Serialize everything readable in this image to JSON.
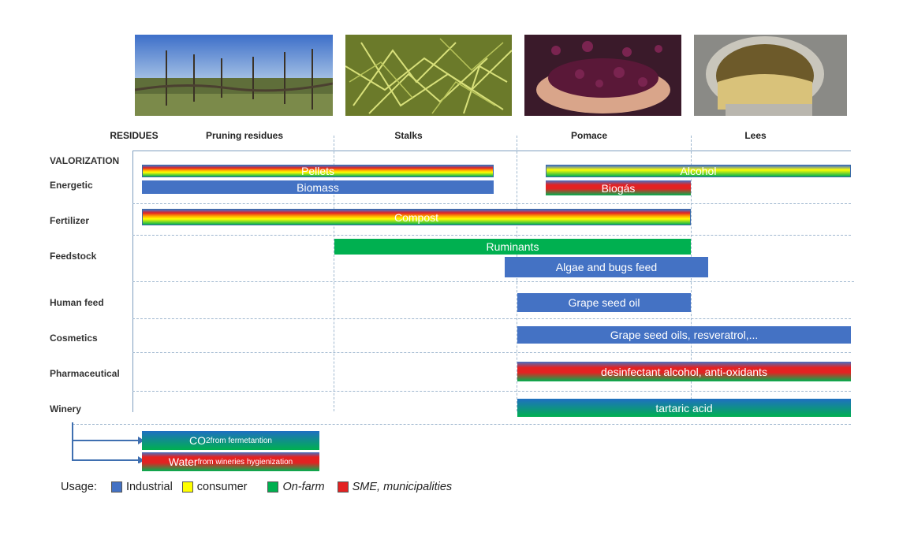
{
  "columns": {
    "residues": "RESIDUES",
    "pruning": "Pruning residues",
    "stalks": "Stalks",
    "pomace": "Pomace",
    "lees": "Lees"
  },
  "rows": {
    "valorization": "VALORIZATION",
    "energetic": "Energetic",
    "fertilizer": "Fertilizer",
    "feedstock": "Feedstock",
    "human_feed": "Human feed",
    "cosmetics": "Cosmetics",
    "pharmaceutical": "Pharmaceutical",
    "winery": "Winery"
  },
  "bars": {
    "pellets": "Pellets",
    "alcohol": "Alcohol",
    "biomass": "Biomass",
    "biogas": "Biogás",
    "compost": "Compost",
    "ruminants": "Ruminants",
    "algae": "Algae and bugs feed",
    "grape_seed_oil": "Grape seed oil",
    "cosmetics": "Grape seed oils, resveratrol,...",
    "pharma": "desinfectant alcohol, anti-oxidants",
    "tartaric": "tartaric  acid"
  },
  "byproducts": {
    "co2_main": "CO",
    "co2_sub": "2",
    "co2_rest": " from fermetantion",
    "water_main": "Water",
    "water_rest": " from wineries hygienization"
  },
  "legend": {
    "title": "Usage:",
    "industrial": "Industrial",
    "consumer": "consumer",
    "onfarm": "On-farm",
    "sme": "SME, municipalities"
  },
  "colors": {
    "industrial": "#4472c4",
    "consumer": "#ffff00",
    "onfarm": "#00b050",
    "sme": "#e32222"
  },
  "photos": [
    "vineyard pruning residues photo",
    "grape stalks photo",
    "grape pomace in hands photo",
    "wine lees tank photo"
  ]
}
